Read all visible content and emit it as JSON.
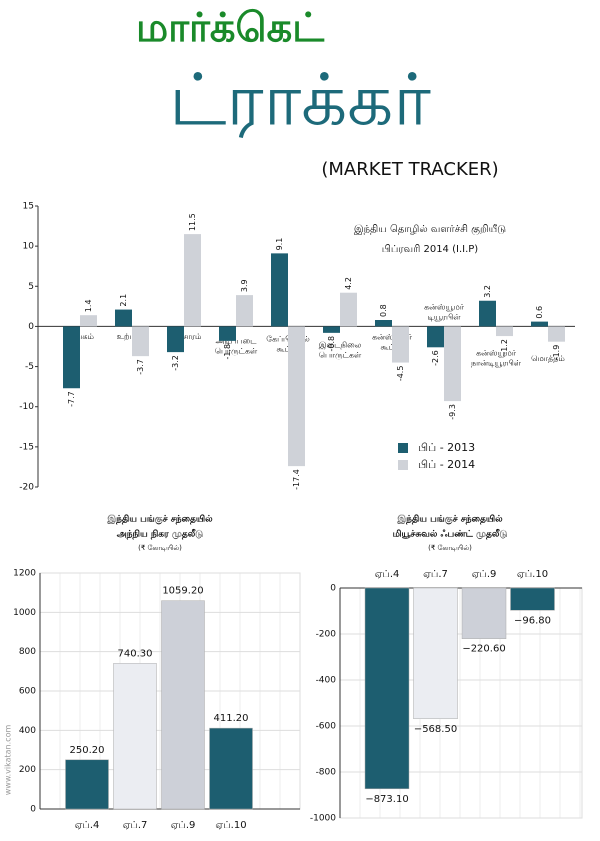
{
  "header": {
    "title": "மார்க்கெட்",
    "title2": "ட்ராக்கர்",
    "subtitle": "(MARKET TRACKER)"
  },
  "watermark": "www.vikatan.com",
  "chart_data": [
    {
      "type": "bar",
      "title": "இந்திய தொழில் வளர்ச்சி குறியீடு",
      "subtitle": "பிப்ரவரி 2014 (I.I.P)",
      "categories": [
        "சுரங்கம்",
        "உற்பத்தி",
        "மின்சாரம்",
        "அடிப்படை பொருட்கள்",
        "கேப்பிட்டல் கூட்ஸ்",
        "இடைநிலை பொருட்கள்",
        "கன்ஸ்யூமர் கூட்ஸ்",
        "கன்ஸ்யூமர் டியூரபிள்",
        "கன்ஸ்யூமர் நான்டியூரபிள்",
        "மொத்தம்"
      ],
      "series": [
        {
          "name": "பிப் - 2013",
          "color": "#1d5e70",
          "values": [
            -7.7,
            2.1,
            -3.2,
            -1.8,
            9.1,
            -0.8,
            0.8,
            -2.6,
            3.2,
            0.6
          ]
        },
        {
          "name": "பிப் - 2014",
          "color": "#cfd2d8",
          "values": [
            1.4,
            -3.7,
            11.5,
            3.9,
            -17.4,
            4.2,
            -4.5,
            -9.3,
            -1.2,
            -1.9
          ]
        }
      ],
      "ylim": [
        -20,
        15
      ],
      "yticks": [
        -20,
        -15,
        -10,
        -5,
        0,
        5,
        10,
        15
      ],
      "grid": false,
      "legend": "lower-right"
    },
    {
      "type": "bar",
      "title": "இந்திய பங்குச் சந்தையில்",
      "subtitle": "அந்நிய நிகர முதலீடு",
      "unit": "(₹ கோடியில்)",
      "categories": [
        "ஏப்.4",
        "ஏப்.7",
        "ஏப்.9",
        "ஏப்.10"
      ],
      "values": [
        250.2,
        740.3,
        1059.2,
        411.2
      ],
      "value_labels": [
        "250.20",
        "740.30",
        "1059.20",
        "411.20"
      ],
      "colors": [
        "#1d5e70",
        "#ebedf2",
        "#cdd0d8",
        "#1d5e70"
      ],
      "ylim": [
        0,
        1200
      ],
      "yticks": [
        0,
        200,
        400,
        600,
        800,
        1000,
        1200
      ],
      "grid": true
    },
    {
      "type": "bar",
      "title": "இந்திய பங்குச் சந்தையில்",
      "subtitle": "மியூச்சுவல் ஃபண்ட் முதலீடு",
      "unit": "(₹ கோடியில்)",
      "categories": [
        "ஏப்.4",
        "ஏப்.7",
        "ஏப்.9",
        "ஏப்.10"
      ],
      "values": [
        -873.1,
        -568.5,
        -220.6,
        -96.8
      ],
      "value_labels": [
        "−873.10",
        "−568.50",
        "−220.60",
        "−96.80"
      ],
      "colors": [
        "#1d5e70",
        "#ebedf2",
        "#cdd0d8",
        "#1d5e70"
      ],
      "ylim": [
        -1000,
        0
      ],
      "yticks": [
        -1000,
        -800,
        -600,
        -400,
        -200,
        0
      ],
      "grid": true
    }
  ]
}
